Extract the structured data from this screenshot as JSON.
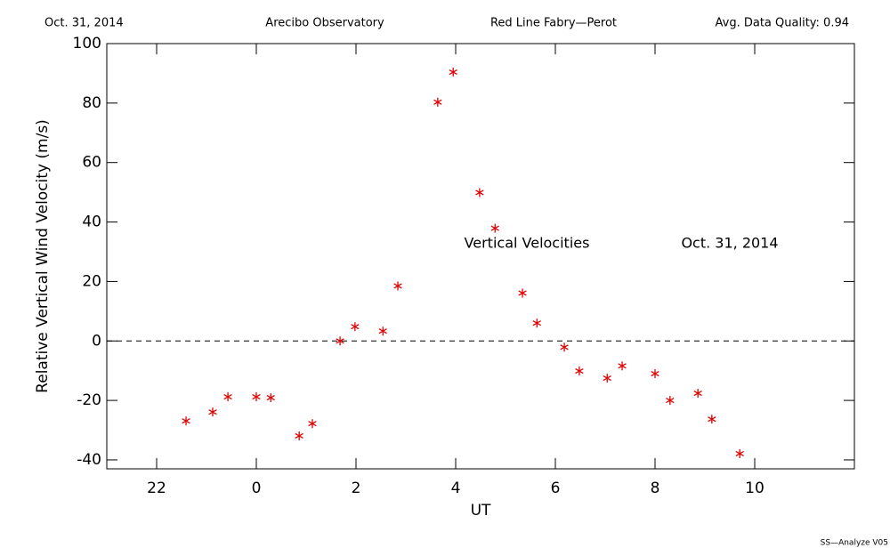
{
  "chart_data": {
    "type": "scatter",
    "header": [
      "Oct. 31, 2014",
      "Arecibo Observatory",
      "Red Line Fabry—Perot",
      "Avg. Data Quality: 0.94"
    ],
    "annotations": [
      "Vertical Velocities",
      "Oct. 31, 2014"
    ],
    "footer": "SS—Analyze V05",
    "xlabel": "UT",
    "ylabel": "Relative Vertical Wind Velocity (m/s)",
    "color": "#e00000",
    "xlim": [
      -3,
      12
    ],
    "ylim": [
      -43,
      100
    ],
    "xticks": [
      {
        "value": -2,
        "label": "22"
      },
      0,
      2,
      4,
      6,
      8,
      10
    ],
    "yticks": [
      -40,
      -20,
      0,
      20,
      40,
      60,
      80,
      100
    ],
    "hline": 0,
    "x": [
      -1.41,
      -0.875,
      -0.57,
      0,
      0.29,
      0.86,
      1.125,
      1.68,
      1.98,
      2.54,
      2.84,
      3.64,
      3.95,
      4.48,
      4.79,
      5.34,
      5.63,
      6.18,
      6.48,
      7.04,
      7.34,
      8.0,
      8.3,
      8.86,
      9.14,
      9.7
    ],
    "values": [
      -26.9,
      -23.9,
      -18.8,
      -18.8,
      -19.1,
      -31.9,
      -27.8,
      0,
      4.8,
      3.3,
      18.5,
      80.3,
      90.4,
      49.9,
      37.9,
      16.1,
      6.0,
      -2.1,
      -10.1,
      -12.5,
      -8.4,
      -11.0,
      -20.0,
      -17.6,
      -26.3,
      -37.9
    ]
  }
}
